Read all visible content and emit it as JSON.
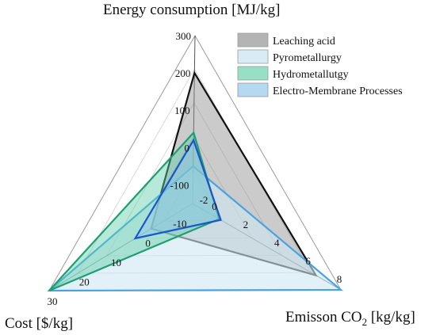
{
  "chart_data": {
    "type": "radar",
    "axes": [
      {
        "key": "energy",
        "title": "Energy consumption [MJ/kg]",
        "ticks": [
          "300",
          "200",
          "100",
          "0",
          "-100"
        ]
      },
      {
        "key": "emission",
        "title_main": "Emisson CO",
        "title_sub": "2",
        "title_unit": " [kg/kg]",
        "ticks": [
          "0",
          "2",
          "4",
          "6",
          "8"
        ]
      },
      {
        "key": "cost",
        "title": "Cost [$/kg]",
        "ticks": [
          "30",
          "20",
          "10",
          "0",
          "-10"
        ]
      }
    ],
    "extra_center_label": "-2",
    "series": [
      {
        "name": "Leaching acid",
        "energy": 200,
        "emission": 6.4,
        "cost": -2,
        "stroke": "#111111",
        "fill": "#8c8c8c",
        "fill_opacity": 0.45
      },
      {
        "name": "Pyrometallurgy",
        "energy": -50,
        "emission": 8,
        "cost": 30,
        "stroke": "#4aa3df",
        "fill": "#cfe6f2",
        "fill_opacity": 0.6
      },
      {
        "name": "Hydrometallutgy",
        "energy": 40,
        "emission": 0.2,
        "cost": 30,
        "stroke": "#1e9e72",
        "fill": "#5fcfa8",
        "fill_opacity": 0.45
      },
      {
        "name": "Electro-Membrane Processes",
        "energy": 20,
        "emission": 0.3,
        "cost": 3,
        "stroke": "#1a55cc",
        "fill": "#8fc3ea",
        "fill_opacity": 0.45
      }
    ],
    "legend_position": "top-right",
    "grid": true
  }
}
